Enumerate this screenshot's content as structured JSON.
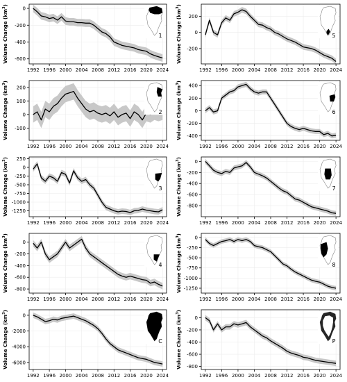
{
  "figure": {
    "ylabel": "Volume Change (km³)",
    "ylabel_base": "Volume Change (km",
    "ylabel_sup": "3",
    "ylabel_close": ")",
    "colors": {
      "line": "#000000",
      "band": "#c8c8c8",
      "grid": "#ececec",
      "axis": "#000000",
      "map_land": "#ffffff",
      "map_region": "#000000"
    }
  },
  "chart_data": [
    {
      "type": "line",
      "region": "1",
      "map_region_shape": "north",
      "x_ticks": [
        1992,
        1996,
        2000,
        2004,
        2008,
        2012,
        2016,
        2020,
        2024
      ],
      "y_ticks": [
        0,
        -200,
        -400,
        -600
      ],
      "ylim": [
        -660,
        50
      ],
      "xlim": [
        1991,
        2025
      ],
      "band_width": 45,
      "x": [
        1992,
        1993,
        1994,
        1995,
        1996,
        1997,
        1998,
        1999,
        2000,
        2001,
        2002,
        2003,
        2004,
        2005,
        2006,
        2007,
        2008,
        2009,
        2010,
        2011,
        2012,
        2013,
        2014,
        2015,
        2016,
        2017,
        2018,
        2019,
        2020,
        2021,
        2022,
        2023,
        2024
      ],
      "y": [
        0,
        -40,
        -90,
        -100,
        -120,
        -110,
        -140,
        -100,
        -150,
        -160,
        -160,
        -170,
        -170,
        -175,
        -175,
        -200,
        -240,
        -280,
        -300,
        -340,
        -400,
        -420,
        -440,
        -450,
        -460,
        -470,
        -490,
        -500,
        -510,
        -540,
        -560,
        -575,
        -590
      ]
    },
    {
      "type": "line",
      "region": "5",
      "map_region_shape": "south_tip",
      "x_ticks": [
        1992,
        1996,
        2000,
        2004,
        2008,
        2012,
        2016,
        2020,
        2024
      ],
      "y_ticks": [
        200,
        0,
        -200
      ],
      "ylim": [
        -390,
        350
      ],
      "xlim": [
        1991,
        2025
      ],
      "band_width": 35,
      "x": [
        1992,
        1993,
        1994,
        1995,
        1996,
        1997,
        1998,
        1999,
        2000,
        2001,
        2002,
        2003,
        2004,
        2005,
        2006,
        2007,
        2008,
        2009,
        2010,
        2011,
        2012,
        2013,
        2014,
        2015,
        2016,
        2017,
        2018,
        2019,
        2020,
        2021,
        2022,
        2023,
        2024
      ],
      "y": [
        -30,
        150,
        0,
        -30,
        120,
        180,
        150,
        230,
        250,
        280,
        260,
        200,
        150,
        100,
        90,
        60,
        40,
        0,
        -20,
        -50,
        -80,
        -100,
        -120,
        -150,
        -180,
        -190,
        -200,
        -220,
        -250,
        -280,
        -300,
        -320,
        -360
      ]
    },
    {
      "type": "line",
      "region": "2",
      "map_region_shape": "northeast",
      "x_ticks": [
        1992,
        1996,
        2000,
        2004,
        2008,
        2012,
        2016,
        2020,
        2024
      ],
      "y_ticks": [
        200,
        100,
        0,
        -100
      ],
      "ylim": [
        -190,
        250
      ],
      "xlim": [
        1991,
        2025
      ],
      "band_width": 60,
      "x": [
        1992,
        1993,
        1994,
        1995,
        1996,
        1997,
        1998,
        1999,
        2000,
        2001,
        2002,
        2003,
        2004,
        2005,
        2006,
        2007,
        2008,
        2009,
        2010,
        2011,
        2012,
        2013,
        2014,
        2015,
        2016,
        2017,
        2018,
        2019,
        2020,
        2021,
        2022,
        2023,
        2024
      ],
      "y": [
        0,
        20,
        -40,
        40,
        20,
        60,
        80,
        120,
        150,
        160,
        170,
        120,
        80,
        40,
        20,
        30,
        10,
        0,
        10,
        -10,
        20,
        -20,
        0,
        10,
        -30,
        20,
        0,
        -40,
        10,
        0,
        20,
        10,
        20
      ]
    },
    {
      "type": "line",
      "region": "6",
      "map_region_shape": "east",
      "x_ticks": [
        1992,
        1996,
        2000,
        2004,
        2008,
        2012,
        2016,
        2020,
        2024
      ],
      "y_ticks": [
        400,
        200,
        0,
        -200,
        -400
      ],
      "ylim": [
        -470,
        480
      ],
      "xlim": [
        1991,
        2025
      ],
      "band_width": 40,
      "x": [
        1992,
        1993,
        1994,
        1995,
        1996,
        1997,
        1998,
        1999,
        2000,
        2001,
        2002,
        2003,
        2004,
        2005,
        2006,
        2007,
        2008,
        2009,
        2010,
        2011,
        2012,
        2013,
        2014,
        2015,
        2016,
        2017,
        2018,
        2019,
        2020,
        2021,
        2022,
        2023,
        2024
      ],
      "y": [
        0,
        50,
        -20,
        0,
        200,
        250,
        300,
        320,
        380,
        400,
        420,
        350,
        300,
        280,
        300,
        300,
        200,
        100,
        0,
        -100,
        -200,
        -250,
        -280,
        -300,
        -280,
        -300,
        -320,
        -330,
        -330,
        -380,
        -360,
        -400,
        -390
      ]
    },
    {
      "type": "line",
      "region": "3",
      "map_region_shape": "east_central",
      "x_ticks": [
        1992,
        1996,
        2000,
        2004,
        2008,
        2012,
        2016,
        2020,
        2024
      ],
      "y_ticks": [
        250,
        0,
        -250,
        -500,
        -750,
        -1000,
        -1250
      ],
      "ylim": [
        -1420,
        300
      ],
      "xlim": [
        1991,
        2025
      ],
      "band_width": 80,
      "x": [
        1992,
        1993,
        1994,
        1995,
        1996,
        1997,
        1998,
        1999,
        2000,
        2001,
        2002,
        2003,
        2004,
        2005,
        2006,
        2007,
        2008,
        2009,
        2010,
        2011,
        2012,
        2013,
        2014,
        2015,
        2016,
        2017,
        2018,
        2019,
        2020,
        2021,
        2022,
        2023,
        2024
      ],
      "y": [
        -50,
        100,
        -300,
        -400,
        -250,
        -300,
        -400,
        -150,
        -200,
        -450,
        -100,
        -300,
        -400,
        -350,
        -500,
        -600,
        -800,
        -1000,
        -1150,
        -1200,
        -1250,
        -1280,
        -1260,
        -1270,
        -1300,
        -1250,
        -1240,
        -1200,
        -1230,
        -1250,
        -1270,
        -1280,
        -1220
      ]
    },
    {
      "type": "line",
      "region": "7",
      "map_region_shape": "central",
      "x_ticks": [
        1992,
        1996,
        2000,
        2004,
        2008,
        2012,
        2016,
        2020,
        2024
      ],
      "y_ticks": [
        0,
        -200,
        -400,
        -600,
        -800
      ],
      "ylim": [
        -1000,
        80
      ],
      "xlim": [
        1991,
        2025
      ],
      "band_width": 45,
      "x": [
        1992,
        1993,
        1994,
        1995,
        1996,
        1997,
        1998,
        1999,
        2000,
        2001,
        2002,
        2003,
        2004,
        2005,
        2006,
        2007,
        2008,
        2009,
        2010,
        2011,
        2012,
        2013,
        2014,
        2015,
        2016,
        2017,
        2018,
        2019,
        2020,
        2021,
        2022,
        2023,
        2024
      ],
      "y": [
        0,
        -80,
        -160,
        -200,
        -220,
        -180,
        -200,
        -120,
        -100,
        -80,
        -20,
        -100,
        -200,
        -230,
        -260,
        -300,
        -360,
        -420,
        -480,
        -530,
        -560,
        -620,
        -680,
        -700,
        -740,
        -780,
        -820,
        -840,
        -860,
        -880,
        -900,
        -930,
        -940
      ]
    },
    {
      "type": "line",
      "region": "4",
      "map_region_shape": "southeast",
      "x_ticks": [
        1992,
        1996,
        2000,
        2004,
        2008,
        2012,
        2016,
        2020,
        2024
      ],
      "y_ticks": [
        0,
        -200,
        -400,
        -600,
        -800
      ],
      "ylim": [
        -870,
        150
      ],
      "xlim": [
        1991,
        2025
      ],
      "band_width": 55,
      "x": [
        1992,
        1993,
        1994,
        1995,
        1996,
        1997,
        1998,
        1999,
        2000,
        2001,
        2002,
        2003,
        2004,
        2005,
        2006,
        2007,
        2008,
        2009,
        2010,
        2011,
        2012,
        2013,
        2014,
        2015,
        2016,
        2017,
        2018,
        2019,
        2020,
        2021,
        2022,
        2023,
        2024
      ],
      "y": [
        -20,
        -100,
        0,
        -200,
        -300,
        -250,
        -200,
        -100,
        0,
        -100,
        -50,
        0,
        50,
        -100,
        -200,
        -250,
        -300,
        -350,
        -400,
        -450,
        -500,
        -550,
        -580,
        -600,
        -580,
        -600,
        -620,
        -640,
        -650,
        -700,
        -680,
        -720,
        -750
      ]
    },
    {
      "type": "line",
      "region": "8",
      "map_region_shape": "northwest",
      "x_ticks": [
        1992,
        1996,
        2000,
        2004,
        2008,
        2012,
        2016,
        2020,
        2024
      ],
      "y_ticks": [
        0,
        -250,
        -500,
        -750,
        -1000,
        -1250
      ],
      "ylim": [
        -1370,
        100
      ],
      "xlim": [
        1991,
        2025
      ],
      "band_width": 55,
      "x": [
        1992,
        1993,
        1994,
        1995,
        1996,
        1997,
        1998,
        1999,
        2000,
        2001,
        2002,
        2003,
        2004,
        2005,
        2006,
        2007,
        2008,
        2009,
        2010,
        2011,
        2012,
        2013,
        2014,
        2015,
        2016,
        2017,
        2018,
        2019,
        2020,
        2021,
        2022,
        2023,
        2024
      ],
      "y": [
        -50,
        -150,
        -200,
        -150,
        -100,
        -80,
        -50,
        -100,
        -50,
        -80,
        -50,
        -100,
        -200,
        -230,
        -250,
        -300,
        -350,
        -450,
        -550,
        -650,
        -700,
        -780,
        -850,
        -900,
        -950,
        -1000,
        -1050,
        -1080,
        -1100,
        -1150,
        -1200,
        -1230,
        -1250
      ]
    },
    {
      "type": "line",
      "region": "C",
      "map_region_shape": "whole",
      "x_ticks": [
        1992,
        1996,
        2000,
        2004,
        2008,
        2012,
        2016,
        2020,
        2024
      ],
      "y_ticks": [
        0,
        -2000,
        -4000,
        -6000
      ],
      "ylim": [
        -6900,
        700
      ],
      "xlim": [
        1991,
        2025
      ],
      "band_width": 350,
      "x": [
        1992,
        1993,
        1994,
        1995,
        1996,
        1997,
        1998,
        1999,
        2000,
        2001,
        2002,
        2003,
        2004,
        2005,
        2006,
        2007,
        2008,
        2009,
        2010,
        2011,
        2012,
        2013,
        2014,
        2015,
        2016,
        2017,
        2018,
        2019,
        2020,
        2021,
        2022,
        2023,
        2024
      ],
      "y": [
        0,
        -200,
        -500,
        -800,
        -700,
        -500,
        -600,
        -400,
        -300,
        -200,
        -100,
        -300,
        -500,
        -700,
        -1000,
        -1300,
        -1700,
        -2300,
        -3000,
        -3600,
        -4000,
        -4400,
        -4600,
        -4800,
        -5000,
        -5200,
        -5400,
        -5500,
        -5600,
        -5800,
        -6000,
        -6100,
        -6200
      ]
    },
    {
      "type": "line",
      "region": "P",
      "map_region_shape": "periphery",
      "x_ticks": [
        1992,
        1996,
        2000,
        2004,
        2008,
        2012,
        2016,
        2020,
        2024
      ],
      "y_ticks": [
        0,
        -200,
        -400,
        -600,
        -800
      ],
      "ylim": [
        -850,
        130
      ],
      "xlim": [
        1991,
        2025
      ],
      "band_width": 45,
      "x": [
        1992,
        1993,
        1994,
        1995,
        1996,
        1997,
        1998,
        1999,
        2000,
        2001,
        2002,
        2003,
        2004,
        2005,
        2006,
        2007,
        2008,
        2009,
        2010,
        2011,
        2012,
        2013,
        2014,
        2015,
        2016,
        2017,
        2018,
        2019,
        2020,
        2021,
        2022,
        2023,
        2024
      ],
      "y": [
        0,
        -50,
        -200,
        -100,
        -200,
        -150,
        -150,
        -100,
        -120,
        -100,
        -80,
        -150,
        -200,
        -250,
        -300,
        -330,
        -380,
        -420,
        -460,
        -500,
        -550,
        -580,
        -600,
        -620,
        -650,
        -660,
        -680,
        -700,
        -710,
        -720,
        -730,
        -740,
        -750
      ]
    }
  ]
}
